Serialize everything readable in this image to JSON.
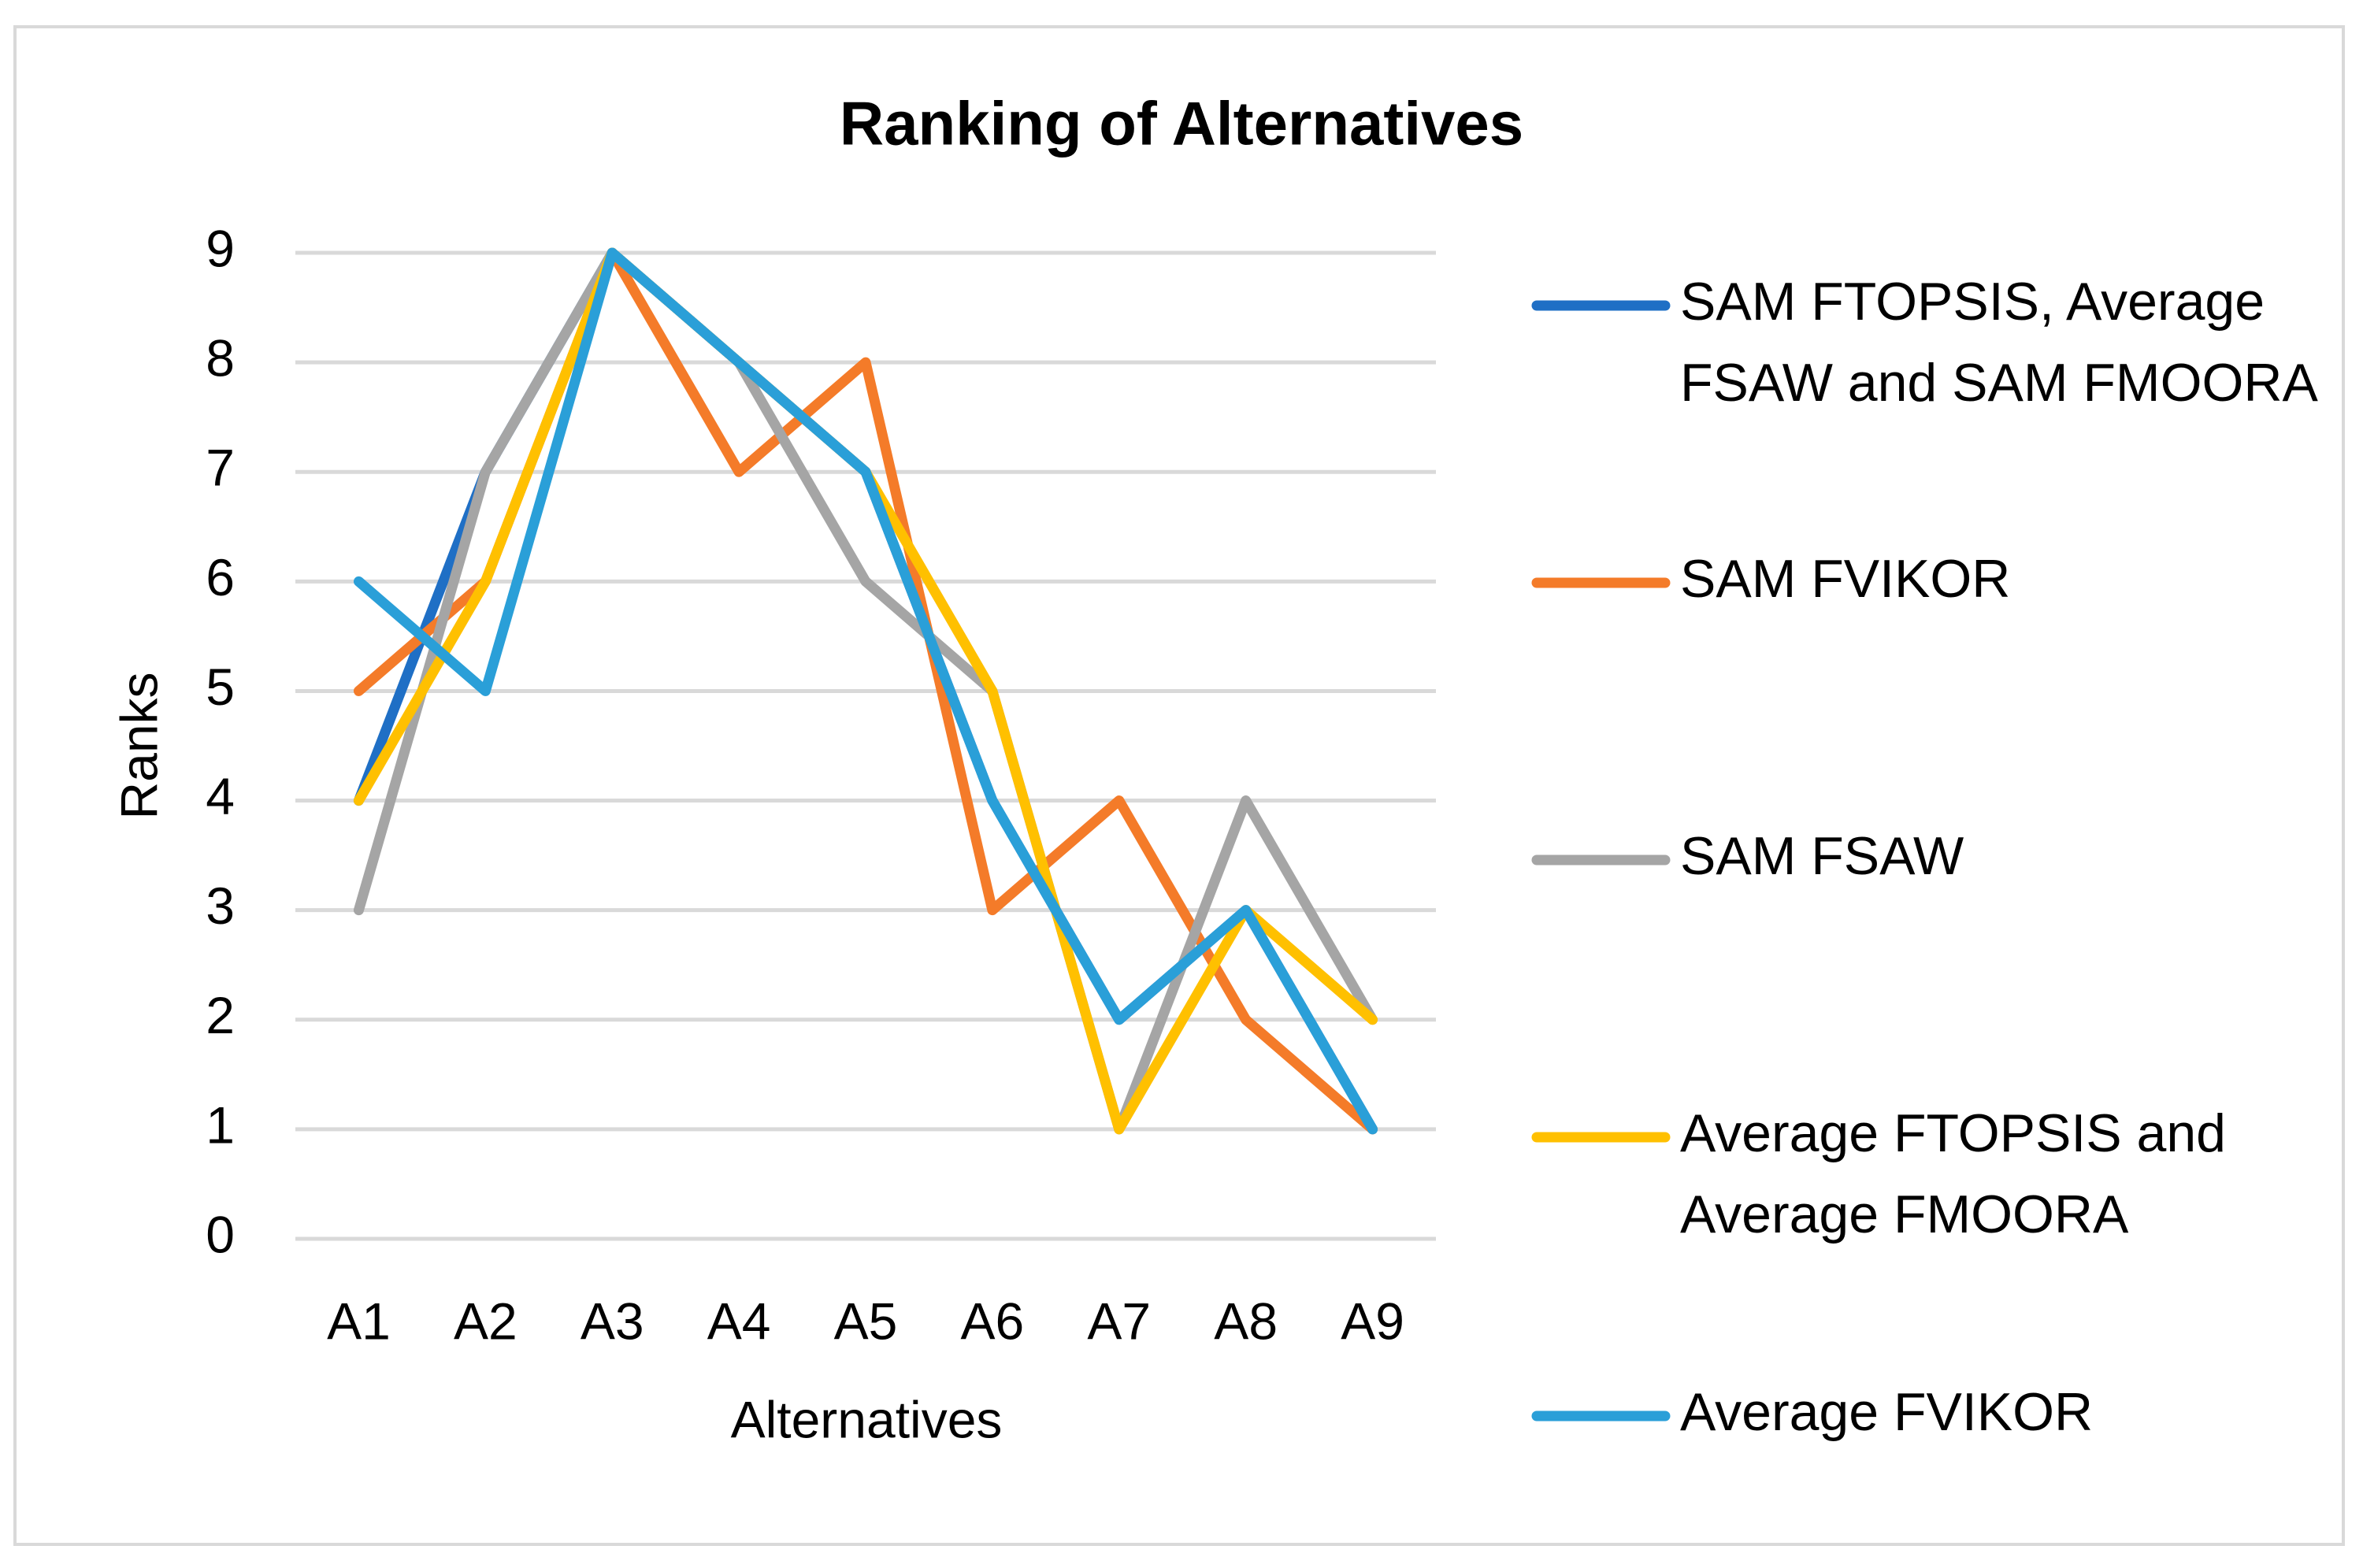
{
  "chart_data": {
    "type": "line",
    "title": "Ranking of Alternatives",
    "x_label": "Alternatives",
    "y_label": "Ranks",
    "categories": [
      "A1",
      "A2",
      "A3",
      "A4",
      "A5",
      "A6",
      "A7",
      "A8",
      "A9"
    ],
    "series": [
      {
        "name": "SAM FTOPSIS, Average FSAW and SAM FMOORA",
        "color": "#1f6fc5",
        "values": [
          4,
          7,
          9,
          8,
          7,
          4,
          2,
          3,
          1
        ]
      },
      {
        "name": "SAM FVIKOR",
        "color": "#f47b29",
        "values": [
          5,
          6,
          9,
          7,
          8,
          3,
          4,
          2,
          1
        ]
      },
      {
        "name": "SAM FSAW",
        "color": "#a5a5a5",
        "values": [
          3,
          7,
          9,
          8,
          6,
          5,
          1,
          4,
          2
        ]
      },
      {
        "name": "Average FTOPSIS and Average FMOORA",
        "color": "#ffc000",
        "values": [
          4,
          6,
          9,
          8,
          7,
          5,
          1,
          3,
          2
        ]
      },
      {
        "name": "Average FVIKOR",
        "color": "#2a9fd8",
        "values": [
          6,
          5,
          9,
          8,
          7,
          4,
          2,
          3,
          1
        ]
      }
    ],
    "ylim": [
      0,
      9
    ],
    "yticks": [
      0,
      1,
      2,
      3,
      4,
      5,
      6,
      7,
      8,
      9
    ],
    "grid": true,
    "legend": "right"
  }
}
